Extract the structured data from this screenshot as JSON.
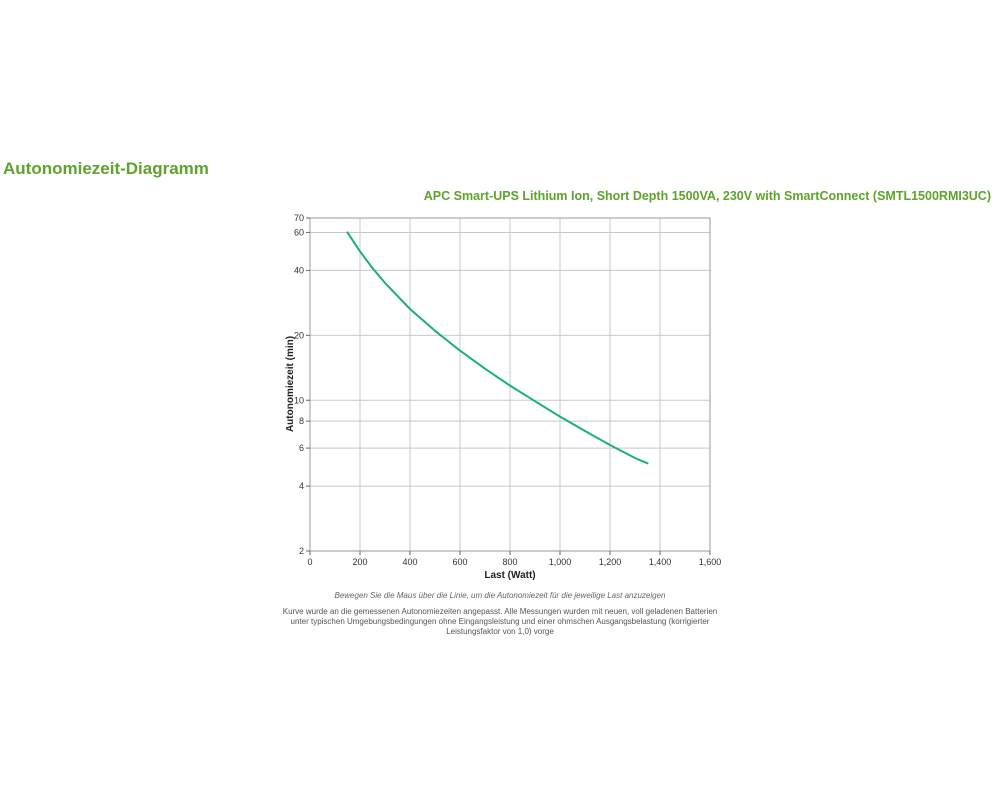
{
  "page": {
    "heading": "Autonomiezeit-Diagramm",
    "product_title": "APC Smart-UPS Lithium Ion, Short Depth 1500VA, 230V with SmartConnect (SMTL1500RMI3UC)",
    "hover_hint": "Bewegen Sie die Maus über die Linie, um die Autonomiezeit für die jeweilige Last anzuzeigen",
    "footnote": "Kurve wurde an die gemessenen Autonomiezeiten angepasst. Alle Messungen wurden mit neuen, voll geladenen Batterien unter typischen Umgebungsbedingungen ohne Eingangsleistung und einer ohmschen Ausgangsbelastung (korrigierter Leistungsfaktor von 1,0) vorge"
  },
  "colors": {
    "heading": "#5ea32b",
    "line": "#1ab07a",
    "grid": "#c8c8c8",
    "axis": "#666666"
  },
  "chart_data": {
    "type": "line",
    "title": "",
    "xlabel": "Last (Watt)",
    "ylabel": "Autonomiezeit (min)",
    "xlim": [
      0,
      1600
    ],
    "ylim": [
      2,
      70
    ],
    "yscale": "log",
    "grid": true,
    "x_ticks": [
      0,
      200,
      400,
      600,
      800,
      1000,
      1200,
      1400,
      1600
    ],
    "x_tick_labels": [
      "0",
      "200",
      "400",
      "600",
      "800",
      "1,000",
      "1,200",
      "1,400",
      "1,600"
    ],
    "y_ticks": [
      2,
      4,
      6,
      8,
      10,
      20,
      40,
      60,
      70
    ],
    "y_tick_labels": [
      "2",
      "4",
      "6",
      "8",
      "10",
      "20",
      "40",
      "60",
      "70"
    ],
    "series": [
      {
        "x": [
          150,
          200,
          250,
          300,
          400,
          500,
          600,
          700,
          800,
          900,
          1000,
          1100,
          1200,
          1300,
          1350
        ],
        "y": [
          60,
          49,
          41,
          35,
          26.5,
          21,
          17,
          14,
          11.7,
          9.9,
          8.4,
          7.2,
          6.2,
          5.4,
          5.1
        ]
      }
    ]
  }
}
